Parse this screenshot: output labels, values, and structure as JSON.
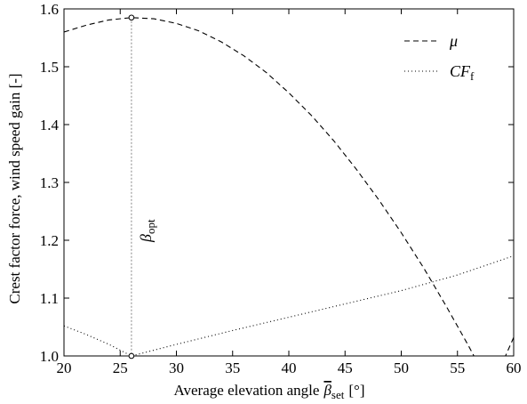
{
  "chart_data": {
    "type": "line",
    "xlabel": "Average elevation angle",
    "xlabel_symbol": "β",
    "xlabel_subscript": "set",
    "xlabel_unit": "[°]",
    "ylabel": "Crest factor force, wind speed gain [-]",
    "xlim": [
      20,
      60
    ],
    "ylim": [
      1.0,
      1.6
    ],
    "xticks": [
      20,
      25,
      30,
      35,
      40,
      45,
      50,
      55,
      60
    ],
    "yticks": [
      1.0,
      1.1,
      1.2,
      1.3,
      1.4,
      1.5,
      1.6
    ],
    "xtick_labels": [
      "20",
      "25",
      "30",
      "35",
      "40",
      "45",
      "50",
      "55",
      "60"
    ],
    "ytick_labels": [
      "1.0",
      "1.1",
      "1.2",
      "1.3",
      "1.4",
      "1.5",
      "1.6"
    ],
    "grid": false,
    "legend_position": "top-right",
    "series": [
      {
        "name": "μ",
        "line_style": "dashed",
        "x": [
          20,
          22,
          24,
          26,
          28,
          30,
          32,
          34,
          36,
          38,
          40,
          42,
          44,
          46,
          48,
          50,
          52,
          54,
          56,
          58,
          60
        ],
        "y": [
          1.56,
          1.572,
          1.581,
          1.585,
          1.583,
          1.575,
          1.562,
          1.543,
          1.519,
          1.49,
          1.455,
          1.416,
          1.372,
          1.323,
          1.27,
          1.213,
          1.152,
          1.086,
          1.017,
          0.944,
          1.032
        ]
      },
      {
        "name": "CF",
        "name_subscript": "f",
        "line_style": "dotted",
        "x": [
          20,
          22,
          24,
          26,
          30,
          35,
          40,
          45,
          50,
          55,
          60
        ],
        "y": [
          1.052,
          1.037,
          1.02,
          1.0,
          1.02,
          1.044,
          1.067,
          1.09,
          1.113,
          1.14,
          1.173
        ]
      }
    ],
    "optimum": {
      "label": "β",
      "label_subscript": "opt",
      "x": 26,
      "y_top": 1.585,
      "y_bottom": 1.0
    }
  }
}
